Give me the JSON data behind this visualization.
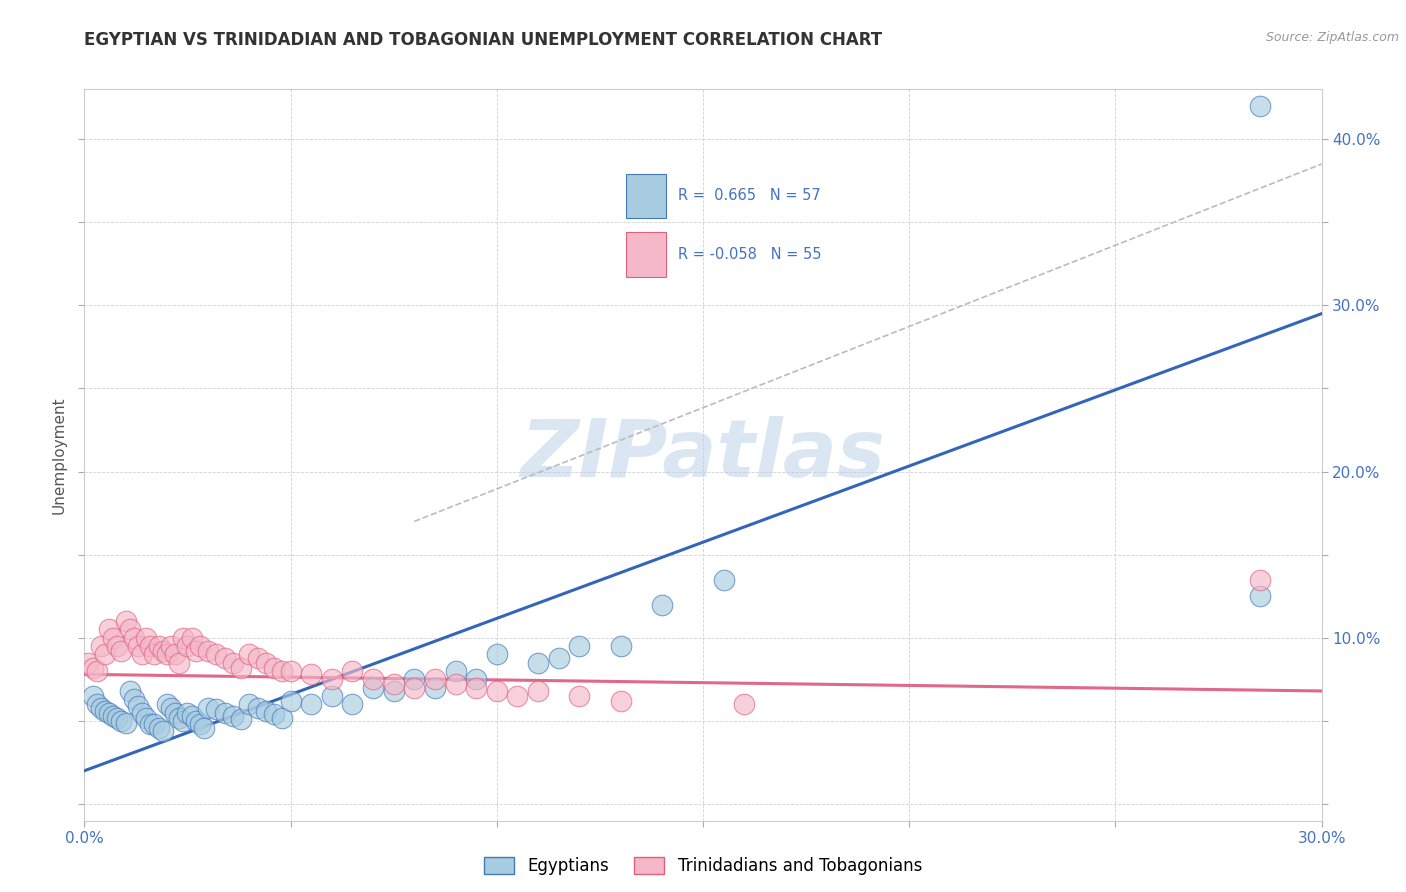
{
  "title": "EGYPTIAN VS TRINIDADIAN AND TOBAGONIAN UNEMPLOYMENT CORRELATION CHART",
  "source": "Source: ZipAtlas.com",
  "ylabel": "Unemployment",
  "x_min": 0.0,
  "x_max": 0.3,
  "y_min": -0.01,
  "y_max": 0.43,
  "x_ticks": [
    0.0,
    0.05,
    0.1,
    0.15,
    0.2,
    0.25,
    0.3
  ],
  "y_ticks": [
    0.0,
    0.05,
    0.1,
    0.15,
    0.2,
    0.25,
    0.3,
    0.35,
    0.4
  ],
  "y_tick_labels_right": [
    "",
    "",
    "10.0%",
    "",
    "20.0%",
    "",
    "30.0%",
    "",
    "40.0%"
  ],
  "color_blue": "#a8cce0",
  "color_pink": "#f4b8c8",
  "color_blue_edge": "#4477bb",
  "color_pink_edge": "#e06080",
  "color_blue_line": "#3366bb",
  "color_pink_line": "#e06888",
  "color_dashed": "#bbbbbb",
  "watermark": "ZIPatlas",
  "blue_points_x": [
    0.002,
    0.003,
    0.004,
    0.005,
    0.006,
    0.007,
    0.008,
    0.009,
    0.01,
    0.011,
    0.012,
    0.013,
    0.014,
    0.015,
    0.016,
    0.017,
    0.018,
    0.019,
    0.02,
    0.021,
    0.022,
    0.023,
    0.024,
    0.025,
    0.026,
    0.027,
    0.028,
    0.029,
    0.03,
    0.032,
    0.034,
    0.036,
    0.038,
    0.04,
    0.042,
    0.044,
    0.046,
    0.048,
    0.05,
    0.055,
    0.06,
    0.065,
    0.07,
    0.075,
    0.08,
    0.085,
    0.09,
    0.095,
    0.1,
    0.11,
    0.115,
    0.12,
    0.13,
    0.14,
    0.155,
    0.285,
    0.285
  ],
  "blue_points_y": [
    0.065,
    0.06,
    0.058,
    0.056,
    0.055,
    0.053,
    0.052,
    0.05,
    0.049,
    0.068,
    0.063,
    0.059,
    0.055,
    0.052,
    0.048,
    0.048,
    0.046,
    0.044,
    0.06,
    0.058,
    0.055,
    0.052,
    0.05,
    0.055,
    0.053,
    0.05,
    0.048,
    0.046,
    0.058,
    0.057,
    0.055,
    0.053,
    0.051,
    0.06,
    0.058,
    0.056,
    0.054,
    0.052,
    0.062,
    0.06,
    0.065,
    0.06,
    0.07,
    0.068,
    0.075,
    0.07,
    0.08,
    0.075,
    0.09,
    0.085,
    0.088,
    0.095,
    0.095,
    0.12,
    0.135,
    0.125,
    0.42
  ],
  "pink_points_x": [
    0.001,
    0.002,
    0.003,
    0.004,
    0.005,
    0.006,
    0.007,
    0.008,
    0.009,
    0.01,
    0.011,
    0.012,
    0.013,
    0.014,
    0.015,
    0.016,
    0.017,
    0.018,
    0.019,
    0.02,
    0.021,
    0.022,
    0.023,
    0.024,
    0.025,
    0.026,
    0.027,
    0.028,
    0.03,
    0.032,
    0.034,
    0.036,
    0.038,
    0.04,
    0.042,
    0.044,
    0.046,
    0.048,
    0.05,
    0.055,
    0.06,
    0.065,
    0.07,
    0.075,
    0.08,
    0.085,
    0.09,
    0.095,
    0.1,
    0.105,
    0.11,
    0.12,
    0.13,
    0.16,
    0.285
  ],
  "pink_points_y": [
    0.085,
    0.082,
    0.08,
    0.095,
    0.09,
    0.105,
    0.1,
    0.095,
    0.092,
    0.11,
    0.105,
    0.1,
    0.095,
    0.09,
    0.1,
    0.095,
    0.09,
    0.095,
    0.092,
    0.09,
    0.095,
    0.09,
    0.085,
    0.1,
    0.095,
    0.1,
    0.092,
    0.095,
    0.092,
    0.09,
    0.088,
    0.085,
    0.082,
    0.09,
    0.088,
    0.085,
    0.082,
    0.08,
    0.08,
    0.078,
    0.075,
    0.08,
    0.075,
    0.072,
    0.07,
    0.075,
    0.072,
    0.07,
    0.068,
    0.065,
    0.068,
    0.065,
    0.062,
    0.06,
    0.135
  ],
  "blue_line_x": [
    0.0,
    0.3
  ],
  "blue_line_y": [
    0.02,
    0.295
  ],
  "pink_line_x": [
    0.0,
    0.3
  ],
  "pink_line_y": [
    0.078,
    0.068
  ],
  "dashed_line_x": [
    0.08,
    0.3
  ],
  "dashed_line_y": [
    0.17,
    0.385
  ]
}
